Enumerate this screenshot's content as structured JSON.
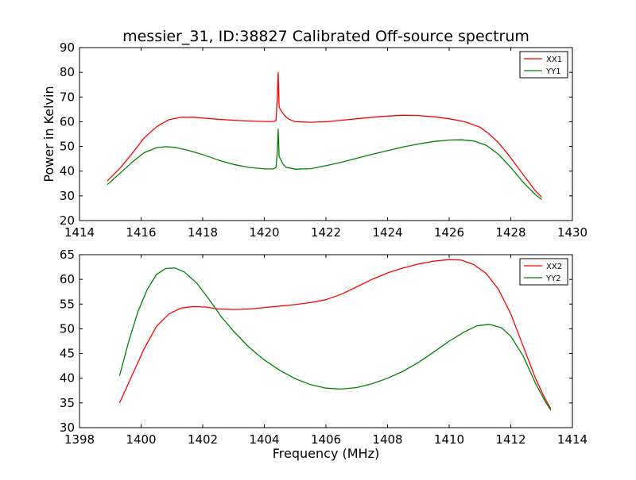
{
  "chart_data": [
    {
      "type": "line",
      "title": "messier_31, ID:38827 Calibrated Off-source spectrum",
      "xlabel": "",
      "ylabel": "Power in Kelvin",
      "xlim": [
        1414,
        1430
      ],
      "ylim": [
        20,
        90
      ],
      "xticks": [
        1414,
        1416,
        1418,
        1420,
        1422,
        1424,
        1426,
        1428,
        1430
      ],
      "yticks": [
        20,
        30,
        40,
        50,
        60,
        70,
        80,
        90
      ],
      "grid": false,
      "legend": "top-right",
      "series": [
        {
          "name": "XX1",
          "color": "#ff0000",
          "x": [
            1414.9,
            1415.3,
            1415.7,
            1416.1,
            1416.5,
            1416.9,
            1417.3,
            1417.7,
            1418.1,
            1418.5,
            1419.0,
            1419.5,
            1420.0,
            1420.3,
            1420.38,
            1420.42,
            1420.45,
            1420.48,
            1420.52,
            1420.6,
            1420.7,
            1420.8,
            1421.0,
            1421.5,
            1422.0,
            1422.5,
            1423.0,
            1423.5,
            1424.0,
            1424.5,
            1425.0,
            1425.5,
            1426.0,
            1426.5,
            1427.0,
            1427.3,
            1427.6,
            1427.9,
            1428.2,
            1428.5,
            1428.8,
            1429.0
          ],
          "y": [
            36.0,
            41.0,
            47.0,
            53.5,
            58.0,
            60.8,
            61.8,
            61.8,
            61.4,
            61.0,
            60.6,
            60.3,
            60.1,
            60.1,
            60.5,
            70.0,
            80.0,
            66.0,
            65.0,
            63.5,
            62.0,
            61.0,
            60.0,
            59.8,
            60.0,
            60.6,
            61.2,
            61.8,
            62.3,
            62.6,
            62.5,
            62.0,
            61.2,
            60.0,
            57.8,
            55.0,
            51.5,
            47.0,
            42.0,
            37.0,
            32.0,
            29.5
          ]
        },
        {
          "name": "YY1",
          "color": "#008000",
          "x": [
            1414.9,
            1415.3,
            1415.7,
            1416.1,
            1416.5,
            1416.8,
            1417.1,
            1417.5,
            1418.0,
            1418.5,
            1419.0,
            1419.5,
            1420.0,
            1420.3,
            1420.38,
            1420.42,
            1420.45,
            1420.48,
            1420.52,
            1420.6,
            1420.7,
            1420.8,
            1421.0,
            1421.5,
            1422.0,
            1422.5,
            1423.0,
            1423.5,
            1424.0,
            1424.5,
            1425.0,
            1425.5,
            1426.0,
            1426.4,
            1426.8,
            1427.2,
            1427.6,
            1428.0,
            1428.4,
            1428.8,
            1429.0
          ],
          "y": [
            34.5,
            39.0,
            43.5,
            47.5,
            49.5,
            49.9,
            49.6,
            48.5,
            46.7,
            44.5,
            42.7,
            41.5,
            40.9,
            40.9,
            41.5,
            48.0,
            57.0,
            46.0,
            45.0,
            43.0,
            41.5,
            41.3,
            40.8,
            41.0,
            42.2,
            43.6,
            45.2,
            46.8,
            48.3,
            49.8,
            51.0,
            52.0,
            52.6,
            52.7,
            52.2,
            50.5,
            46.8,
            41.5,
            35.5,
            30.5,
            28.5
          ]
        }
      ]
    },
    {
      "type": "line",
      "title": "",
      "xlabel": "Frequency (MHz)",
      "ylabel": "",
      "xlim": [
        1398,
        1414
      ],
      "ylim": [
        30,
        65
      ],
      "xticks": [
        1398,
        1400,
        1402,
        1404,
        1406,
        1408,
        1410,
        1412,
        1414
      ],
      "yticks": [
        30,
        35,
        40,
        45,
        50,
        55,
        60,
        65
      ],
      "grid": false,
      "legend": "top-right",
      "series": [
        {
          "name": "XX2",
          "color": "#ff0000",
          "x": [
            1399.3,
            1399.7,
            1400.1,
            1400.5,
            1400.9,
            1401.3,
            1401.7,
            1402.1,
            1402.5,
            1403.0,
            1403.5,
            1404.0,
            1404.5,
            1405.0,
            1405.5,
            1406.0,
            1406.5,
            1407.0,
            1407.5,
            1408.0,
            1408.5,
            1409.0,
            1409.5,
            1410.0,
            1410.4,
            1410.8,
            1411.2,
            1411.6,
            1412.0,
            1412.4,
            1412.8,
            1413.1,
            1413.3
          ],
          "y": [
            35.0,
            40.5,
            46.0,
            50.5,
            53.0,
            54.2,
            54.5,
            54.4,
            54.0,
            53.9,
            54.0,
            54.3,
            54.6,
            54.9,
            55.3,
            55.9,
            57.0,
            58.5,
            60.0,
            61.3,
            62.3,
            63.1,
            63.7,
            64.0,
            63.9,
            63.0,
            61.2,
            58.0,
            53.0,
            46.5,
            40.0,
            36.0,
            33.8
          ]
        },
        {
          "name": "YY2",
          "color": "#008000",
          "x": [
            1399.3,
            1399.6,
            1399.9,
            1400.2,
            1400.5,
            1400.8,
            1401.1,
            1401.4,
            1401.8,
            1402.2,
            1402.6,
            1403.0,
            1403.5,
            1404.0,
            1404.5,
            1405.0,
            1405.5,
            1406.0,
            1406.5,
            1407.0,
            1407.5,
            1408.0,
            1408.5,
            1409.0,
            1409.5,
            1410.0,
            1410.5,
            1410.9,
            1411.3,
            1411.7,
            1412.0,
            1412.4,
            1412.8,
            1413.1,
            1413.3
          ],
          "y": [
            40.5,
            47.5,
            53.5,
            58.0,
            61.0,
            62.2,
            62.3,
            61.5,
            59.3,
            56.0,
            52.5,
            49.5,
            46.3,
            43.7,
            41.6,
            39.9,
            38.7,
            38.0,
            37.8,
            38.1,
            38.9,
            40.0,
            41.4,
            43.2,
            45.3,
            47.5,
            49.4,
            50.6,
            50.9,
            50.2,
            48.5,
            44.5,
            39.0,
            35.5,
            33.5
          ]
        }
      ]
    }
  ]
}
